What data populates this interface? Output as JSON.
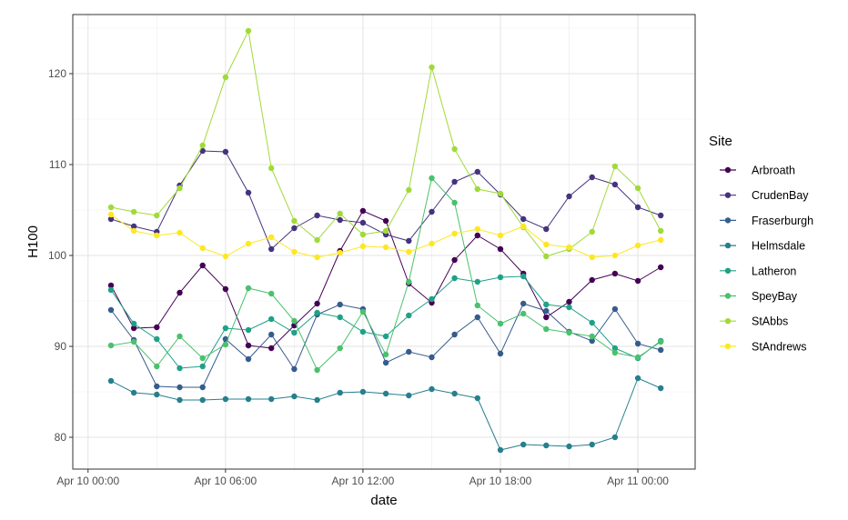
{
  "chart_data": {
    "type": "line",
    "xlabel": "date",
    "ylabel": "H100",
    "x_ticks": [
      "Apr 10 00:00",
      "Apr 10 06:00",
      "Apr 10 12:00",
      "Apr 10 18:00",
      "Apr 11 00:00"
    ],
    "y_ticks": [
      "80",
      "90",
      "100",
      "110",
      "120"
    ],
    "xlim": [
      "2024-04-09T23:20",
      "2024-04-11T02:30"
    ],
    "ylim": [
      76.5,
      126.5
    ],
    "grid": true,
    "legend_title": "Site",
    "legend_position": "right",
    "x": [
      "2024-04-10T01:00",
      "2024-04-10T02:00",
      "2024-04-10T03:00",
      "2024-04-10T04:00",
      "2024-04-10T05:00",
      "2024-04-10T06:00",
      "2024-04-10T07:00",
      "2024-04-10T08:00",
      "2024-04-10T09:00",
      "2024-04-10T10:00",
      "2024-04-10T11:00",
      "2024-04-10T12:00",
      "2024-04-10T13:00",
      "2024-04-10T14:00",
      "2024-04-10T15:00",
      "2024-04-10T16:00",
      "2024-04-10T17:00",
      "2024-04-10T18:00",
      "2024-04-10T19:00",
      "2024-04-10T20:00",
      "2024-04-10T21:00",
      "2024-04-10T22:00",
      "2024-04-10T23:00",
      "2024-04-11T00:00",
      "2024-04-11T01:00"
    ],
    "series": [
      {
        "name": "Arbroath",
        "color": "#440154",
        "values": [
          96.7,
          92.0,
          92.1,
          95.9,
          98.9,
          96.3,
          90.1,
          89.8,
          92.3,
          94.7,
          100.5,
          104.9,
          103.8,
          96.9,
          94.8,
          99.5,
          102.2,
          100.7,
          98.0,
          93.2,
          94.9,
          97.3,
          98.0,
          97.2,
          98.7
        ]
      },
      {
        "name": "CrudenBay",
        "color": "#46337e",
        "values": [
          104.0,
          103.2,
          102.6,
          107.7,
          111.5,
          111.4,
          106.9,
          100.7,
          103.0,
          104.4,
          103.9,
          103.6,
          102.3,
          101.6,
          104.8,
          108.1,
          109.2,
          106.7,
          104.0,
          102.9,
          106.5,
          108.6,
          107.8,
          105.3,
          104.4
        ]
      },
      {
        "name": "Fraserburgh",
        "color": "#365c8d",
        "values": [
          94.0,
          90.7,
          85.6,
          85.5,
          85.5,
          90.8,
          88.6,
          91.3,
          87.5,
          93.5,
          94.6,
          94.1,
          88.2,
          89.4,
          88.8,
          91.3,
          93.2,
          89.2,
          94.7,
          93.9,
          91.6,
          90.6,
          94.1,
          90.3,
          89.6
        ]
      },
      {
        "name": "Helmsdale",
        "color": "#277f8e",
        "values": [
          86.2,
          84.9,
          84.7,
          84.1,
          84.1,
          84.2,
          84.2,
          84.2,
          84.5,
          84.1,
          84.9,
          85.0,
          84.8,
          84.6,
          85.3,
          84.8,
          84.3,
          78.6,
          79.2,
          79.1,
          79.0,
          79.2,
          80.0,
          86.5,
          85.4
        ]
      },
      {
        "name": "Latheron",
        "color": "#1fa187",
        "values": [
          96.2,
          92.5,
          90.8,
          87.6,
          87.8,
          92.0,
          91.8,
          93.0,
          91.5,
          93.7,
          93.2,
          91.6,
          91.1,
          93.4,
          95.2,
          97.5,
          97.1,
          97.6,
          97.7,
          94.6,
          94.3,
          92.6,
          89.8,
          88.7,
          90.6
        ]
      },
      {
        "name": "SpeyBay",
        "color": "#4ac16d",
        "values": [
          90.1,
          90.5,
          87.8,
          91.1,
          88.7,
          90.2,
          96.4,
          95.8,
          92.8,
          87.4,
          89.8,
          93.8,
          89.1,
          97.1,
          108.5,
          105.8,
          94.5,
          92.5,
          93.6,
          91.9,
          91.5,
          91.1,
          89.3,
          88.8,
          90.5
        ]
      },
      {
        "name": "StAbbs",
        "color": "#a0da39",
        "values": [
          105.3,
          104.8,
          104.4,
          107.4,
          112.1,
          119.6,
          124.7,
          109.6,
          103.8,
          101.7,
          104.6,
          102.3,
          102.7,
          107.2,
          120.7,
          111.7,
          107.3,
          106.8,
          103.1,
          99.9,
          100.7,
          102.6,
          109.8,
          107.4,
          102.7
        ]
      },
      {
        "name": "StAndrews",
        "color": "#fde725",
        "values": [
          104.5,
          102.7,
          102.2,
          102.5,
          100.8,
          99.9,
          101.3,
          102.0,
          100.4,
          99.8,
          100.3,
          101.0,
          100.9,
          100.4,
          101.3,
          102.4,
          102.9,
          102.2,
          103.2,
          101.2,
          100.9,
          99.8,
          100.0,
          101.1,
          101.7
        ]
      }
    ]
  }
}
